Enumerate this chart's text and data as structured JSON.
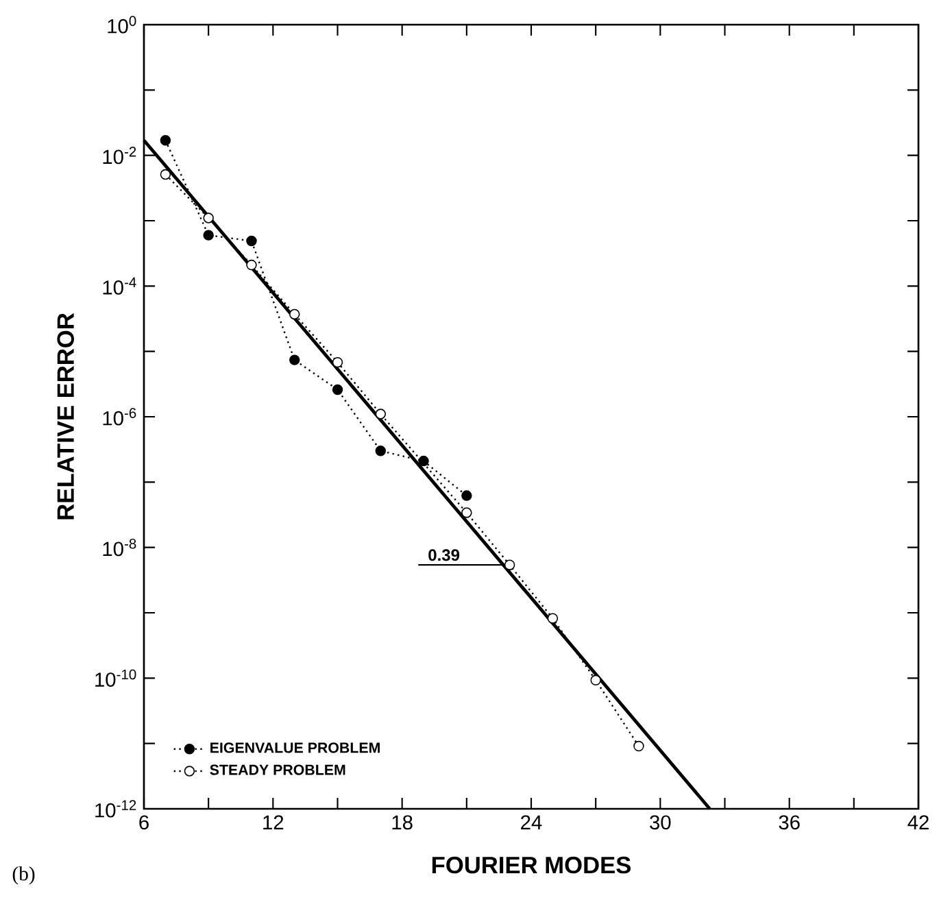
{
  "chart_data": {
    "type": "line",
    "xlabel": "FOURIER MODES",
    "ylabel": "RELATIVE ERROR",
    "log": "y",
    "marker": "circle",
    "line_style": "dotted",
    "legend": "bottom left",
    "xlim": [
      6,
      42
    ],
    "ylim": [
      1e-12,
      1
    ],
    "xticks": [
      6,
      {
        "value": 9,
        "label": null
      },
      12,
      {
        "value": 15,
        "label": null
      },
      18,
      {
        "value": 21,
        "label": null
      },
      24,
      {
        "value": 27,
        "label": null
      },
      30,
      {
        "value": 33,
        "label": null
      },
      36,
      {
        "value": 39,
        "label": null
      },
      42
    ],
    "yticks": [
      {
        "value": 1,
        "label": "10$^{0}$"
      },
      {
        "value": 0.1,
        "label": null
      },
      {
        "value": 0.01,
        "label": "10$^{-2}$"
      },
      {
        "value": 0.001,
        "label": null
      },
      {
        "value": 0.0001,
        "label": "10$^{-4}$"
      },
      {
        "value": 1e-05,
        "label": null
      },
      {
        "value": 1e-06,
        "label": "10$^{-6}$"
      },
      {
        "value": 1e-07,
        "label": null
      },
      {
        "value": 1e-08,
        "label": "10$^{-8}$"
      },
      {
        "value": 1e-09,
        "label": null
      },
      {
        "value": 1e-10,
        "label": "10$^{-10}$"
      },
      {
        "value": 1e-11,
        "label": null
      },
      {
        "value": 1e-12,
        "label": "10$^{-12}$"
      }
    ],
    "annotations": [
      "(b)",
      {
        "text": "0.39",
        "x": 23,
        "y": 5.4e-09
      }
    ],
    "series": [
      {
        "name": "EIGENVALUE PROBLEM",
        "color": "#000000",
        "x": [
          7,
          9,
          11,
          13,
          15,
          17,
          19,
          21
        ],
        "values": [
          0.017,
          0.0006,
          0.00049,
          7.4e-06,
          2.6e-06,
          3e-07,
          2.1e-07,
          6.2e-08
        ]
      },
      {
        "name": "STEADY PROBLEM",
        "color": "#000000",
        "x": [
          7,
          9,
          11,
          13,
          15,
          17,
          21,
          23,
          25,
          27,
          29
        ],
        "values": [
          0.0051,
          0.0011,
          0.00021,
          3.7e-05,
          6.8e-06,
          1.1e-06,
          3.4e-08,
          5.4e-09,
          8.2e-10,
          9.3e-11,
          9.1e-12
        ]
      },
      {
        "type": "line",
        "color": "#000000",
        "marker": "none",
        "line_style": "solid",
        "x": [
          6,
          32.3
        ],
        "values": [
          0.017,
          1e-12
        ]
      }
    ]
  }
}
